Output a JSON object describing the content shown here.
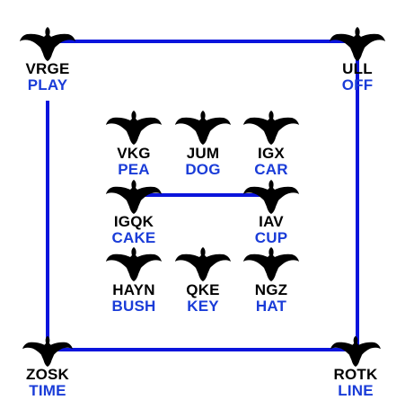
{
  "colors": {
    "line": "#0a14dc",
    "code_text": "#000000",
    "word_text": "#1a3cd8",
    "bird": "#000000"
  },
  "icon": "bird-icon",
  "nodes": [
    {
      "code": "VRGE",
      "word": "PLAY"
    },
    {
      "code": "ULL",
      "word": "OFF"
    },
    {
      "code": "VKG",
      "word": "PEA"
    },
    {
      "code": "JUM",
      "word": "DOG"
    },
    {
      "code": "IGX",
      "word": "CAR"
    },
    {
      "code": "IGQK",
      "word": "CAKE"
    },
    {
      "code": "IAV",
      "word": "CUP"
    },
    {
      "code": "HAYN",
      "word": "BUSH"
    },
    {
      "code": "QKE",
      "word": "KEY"
    },
    {
      "code": "NGZ",
      "word": "HAT"
    },
    {
      "code": "ZOSK",
      "word": "TIME"
    },
    {
      "code": "ROTK",
      "word": "LINE"
    }
  ]
}
